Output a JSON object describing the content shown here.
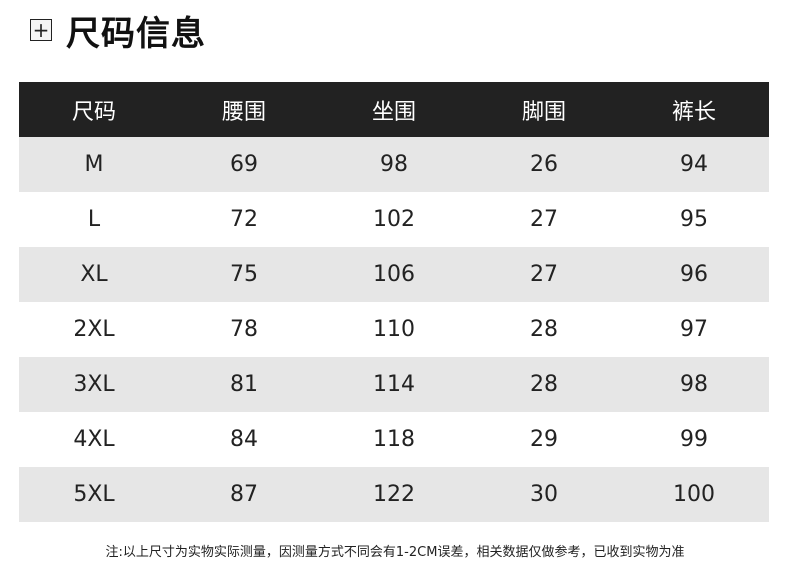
{
  "title": "尺码信息",
  "title_icon": "plus-box-icon",
  "table": {
    "headers": [
      "尺码",
      "腰围",
      "坐围",
      "脚围",
      "裤长"
    ],
    "rows": [
      [
        "M",
        "69",
        "98",
        "26",
        "94"
      ],
      [
        "L",
        "72",
        "102",
        "27",
        "95"
      ],
      [
        "XL",
        "75",
        "106",
        "27",
        "96"
      ],
      [
        "2XL",
        "78",
        "110",
        "28",
        "97"
      ],
      [
        "3XL",
        "81",
        "114",
        "28",
        "98"
      ],
      [
        "4XL",
        "84",
        "118",
        "29",
        "99"
      ],
      [
        "5XL",
        "87",
        "122",
        "30",
        "100"
      ]
    ]
  },
  "note": "注:以上尺寸为实物实际测量，因测量方式不同会有1-2CM误差，相关数据仅做参考，已收到实物为准",
  "colors": {
    "header_bg": "#222222",
    "stripe_bg": "#e6e6e6"
  }
}
